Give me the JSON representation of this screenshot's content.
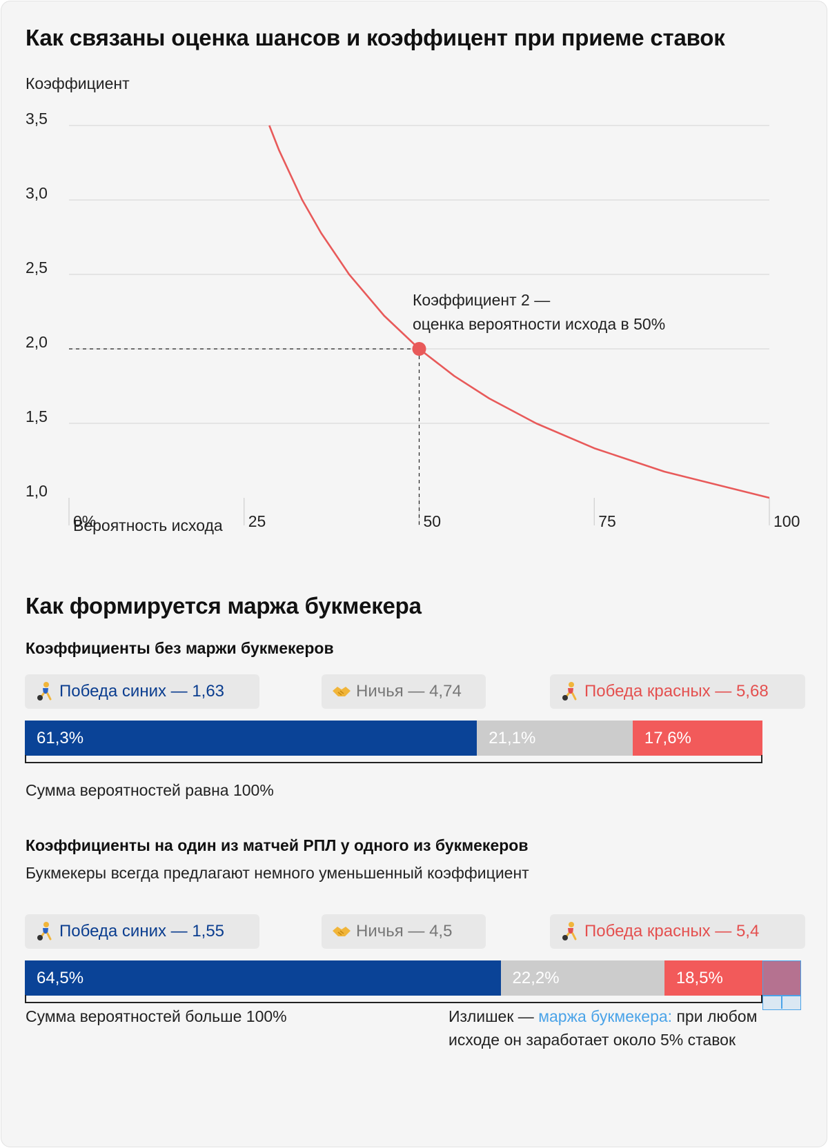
{
  "top": {
    "title": "Как связаны оценка шансов и коэффицент при приеме ставок"
  },
  "chart_data": {
    "type": "line",
    "ylabel": "Коэффициент",
    "xlabel": "Вероятность исхода",
    "ylim": [
      1.0,
      3.5
    ],
    "xlim": [
      0,
      100
    ],
    "y_ticks": [
      "1,0",
      "1,5",
      "2,0",
      "2,5",
      "3,0",
      "3,5"
    ],
    "x_ticks": [
      "0%",
      "25",
      "50",
      "75",
      "100"
    ],
    "grid": true,
    "series": [
      {
        "color": "#e85a5a",
        "x": [
          28.6,
          30,
          33.3,
          36,
          40,
          45,
          50,
          55,
          60,
          66.7,
          75,
          85,
          100
        ],
        "values": [
          3.5,
          3.333,
          3.0,
          2.778,
          2.5,
          2.222,
          2.0,
          1.818,
          1.667,
          1.5,
          1.333,
          1.176,
          1.0
        ]
      }
    ],
    "highlight": {
      "x": 50,
      "y": 2.0
    },
    "annotation": [
      "Коэффициент 2 —",
      "оценка вероятности исхода в 50%"
    ]
  },
  "margin": {
    "title": "Как формируется маржа букмекера",
    "no_margin": {
      "subtitle": "Коэффициенты без маржи букмекеров",
      "pills": [
        {
          "label": "Победа синих — 1,63",
          "icon": "blue-player-icon"
        },
        {
          "label": "Ничья — 4,74",
          "icon": "handshake-icon"
        },
        {
          "label": "Победа красных — 5,68",
          "icon": "red-player-icon"
        }
      ],
      "bar_data": {
        "type": "bar",
        "values": [
          61.3,
          21.1,
          17.6
        ],
        "labels": [
          "61,3%",
          "21,1%",
          "17,6%"
        ],
        "colors": [
          "#0a4397",
          "#cccccc",
          "#f25a5a"
        ]
      },
      "sum_text": "Сумма вероятностей равна 100%"
    },
    "with_margin": {
      "subtitle": "Коэффициенты на один из матчей РПЛ у одного из букмекеров",
      "description": "Букмекеры всегда предлагают немного уменьшенный коэффициент",
      "pills": [
        {
          "label": "Победа синих — 1,55",
          "icon": "blue-player-icon"
        },
        {
          "label": "Ничья — 4,5",
          "icon": "handshake-icon"
        },
        {
          "label": "Победа красных — 5,4",
          "icon": "red-player-icon"
        }
      ],
      "bar_data": {
        "type": "bar",
        "values": [
          64.5,
          22.2,
          18.5
        ],
        "labels": [
          "64,5%",
          "22,2%",
          "18,5%"
        ],
        "colors": [
          "#0a4397",
          "#cccccc",
          "#f25a5a"
        ],
        "overflow_color": "#c86a80"
      },
      "sum_text": "Сумма вероятностей больше 100%",
      "note_prefix": "Излишек — ",
      "note_link": "маржа букмекера:",
      "note_rest_1": " при любом",
      "note_rest_2": "исходе он заработает около 5% ставок"
    }
  }
}
